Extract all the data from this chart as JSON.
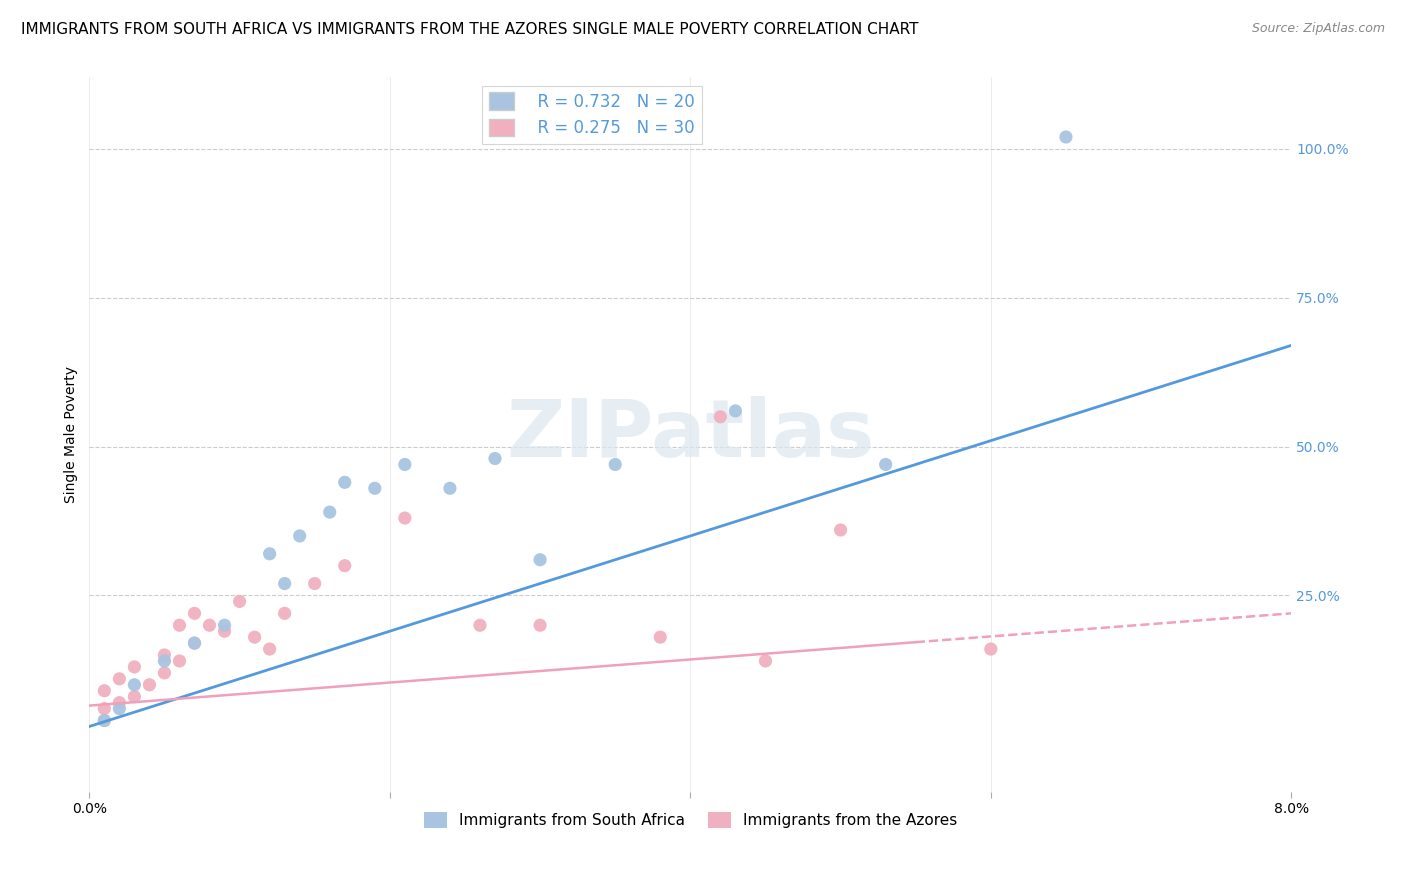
{
  "title": "IMMIGRANTS FROM SOUTH AFRICA VS IMMIGRANTS FROM THE AZORES SINGLE MALE POVERTY CORRELATION CHART",
  "source": "Source: ZipAtlas.com",
  "ylabel": "Single Male Poverty",
  "ytick_labels": [
    "100.0%",
    "75.0%",
    "50.0%",
    "25.0%"
  ],
  "ytick_values": [
    1.0,
    0.75,
    0.5,
    0.25
  ],
  "xlim": [
    0.0,
    0.08
  ],
  "ylim": [
    -0.08,
    1.12
  ],
  "legend_label1": "Immigrants from South Africa",
  "legend_label2": "Immigrants from the Azores",
  "R1": 0.732,
  "N1": 20,
  "R2": 0.275,
  "N2": 30,
  "color1": "#a8c4e0",
  "color2": "#f0b0c0",
  "line_color1": "#5599dd",
  "line_color2": "#f0a0b8",
  "watermark_color": "#dce8f0",
  "watermark": "ZIPatlas",
  "scatter1_x": [
    0.001,
    0.002,
    0.003,
    0.005,
    0.007,
    0.009,
    0.012,
    0.013,
    0.014,
    0.016,
    0.017,
    0.019,
    0.021,
    0.024,
    0.027,
    0.03,
    0.035,
    0.043,
    0.053,
    0.065
  ],
  "scatter1_y": [
    0.04,
    0.06,
    0.1,
    0.14,
    0.17,
    0.2,
    0.32,
    0.27,
    0.35,
    0.39,
    0.44,
    0.43,
    0.47,
    0.43,
    0.48,
    0.31,
    0.47,
    0.56,
    0.47,
    1.02
  ],
  "scatter2_x": [
    0.001,
    0.001,
    0.001,
    0.002,
    0.002,
    0.003,
    0.003,
    0.004,
    0.005,
    0.005,
    0.006,
    0.006,
    0.007,
    0.007,
    0.008,
    0.009,
    0.01,
    0.011,
    0.012,
    0.013,
    0.015,
    0.017,
    0.021,
    0.026,
    0.03,
    0.038,
    0.042,
    0.045,
    0.05,
    0.06
  ],
  "scatter2_y": [
    0.04,
    0.06,
    0.09,
    0.07,
    0.11,
    0.08,
    0.13,
    0.1,
    0.12,
    0.15,
    0.14,
    0.2,
    0.17,
    0.22,
    0.2,
    0.19,
    0.24,
    0.18,
    0.16,
    0.22,
    0.27,
    0.3,
    0.38,
    0.2,
    0.2,
    0.18,
    0.55,
    0.14,
    0.36,
    0.16
  ],
  "line1_x0": 0.0,
  "line1_y0": 0.03,
  "line1_x1": 0.08,
  "line1_y1": 0.67,
  "line2_x0": 0.0,
  "line2_y0": 0.065,
  "line2_x1": 0.08,
  "line2_y1": 0.22,
  "title_fontsize": 11,
  "label_fontsize": 10,
  "tick_fontsize": 10
}
